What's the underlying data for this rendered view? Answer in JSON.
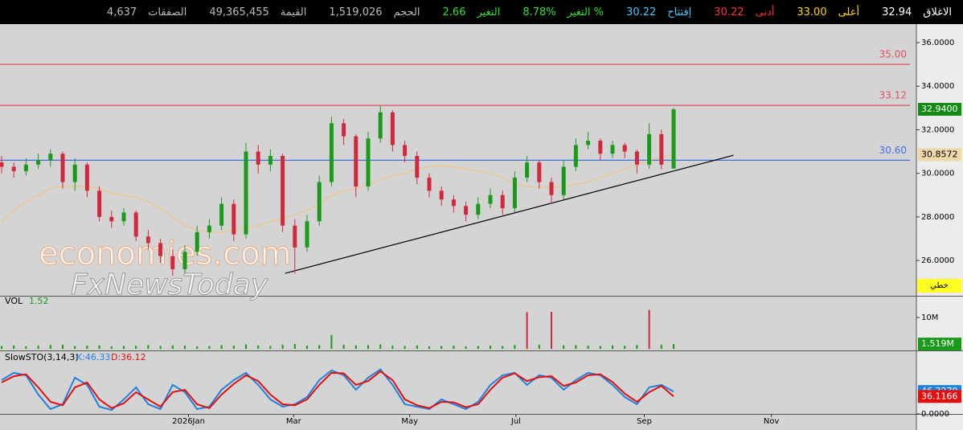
{
  "header": {
    "items": [
      {
        "label": "الاغلاق",
        "value": "32.94",
        "color": "#ffffff"
      },
      {
        "label": "أعلى",
        "value": "33.00",
        "color": "#ffd700"
      },
      {
        "label": "أدنى",
        "value": "30.22",
        "color": "#ff3030"
      },
      {
        "label": "إفتتاح",
        "value": "30.22",
        "color": "#40c8ff"
      },
      {
        "label": "التغير %",
        "value": "8.78%",
        "color": "#30e030"
      },
      {
        "label": "التغير",
        "value": "2.66",
        "color": "#30e030"
      },
      {
        "label": "الحجم",
        "value": "1,519,026",
        "color": "#bbbbbb"
      },
      {
        "label": "القيمة",
        "value": "49,365,455",
        "color": "#bbbbbb"
      },
      {
        "label": "الصفقات",
        "value": "4,637",
        "color": "#bbbbbb"
      }
    ],
    "scale_button": "خطي"
  },
  "chart_data": [
    {
      "type": "candlestick",
      "watermark": [
        "economies.com",
        "FxNewsToday"
      ],
      "xlim": [
        0,
        75
      ],
      "ylim": [
        24.38,
        36.85
      ],
      "yticks": [
        {
          "value": 26,
          "label": "26.0000"
        },
        {
          "value": 28,
          "label": "28.0000"
        },
        {
          "value": 30,
          "label": "30.0000"
        },
        {
          "value": 32,
          "label": "32.0000"
        },
        {
          "value": 34,
          "label": "34.0000"
        },
        {
          "value": 36,
          "label": "36.0000"
        }
      ],
      "up_color": "#1a9a1a",
      "down_color": "#d0283c",
      "open": [
        30.5,
        30.3,
        30.1,
        30.4,
        30.6,
        30.9,
        29.6,
        30.4,
        29.2,
        28.0,
        27.8,
        28.2,
        27.1,
        26.8,
        26.2,
        25.6,
        26.4,
        27.3,
        27.6,
        28.6,
        27.2,
        31.0,
        30.4,
        30.8,
        27.6,
        26.6,
        27.8,
        29.6,
        32.3,
        31.7,
        29.4,
        31.6,
        32.8,
        31.3,
        30.8,
        29.8,
        29.2,
        28.8,
        28.5,
        28.1,
        28.6,
        29.0,
        28.4,
        29.8,
        30.5,
        29.6,
        29.0,
        30.3,
        31.3,
        31.5,
        30.9,
        31.3,
        31.0,
        30.4,
        31.8,
        30.22
      ],
      "high": [
        30.8,
        30.5,
        30.7,
        30.9,
        31.1,
        31.0,
        30.7,
        30.5,
        29.4,
        28.3,
        28.4,
        28.3,
        27.4,
        27.0,
        26.5,
        26.7,
        27.6,
        27.9,
        28.9,
        28.8,
        31.4,
        31.3,
        31.1,
        30.9,
        27.9,
        28.1,
        29.9,
        32.6,
        32.5,
        31.8,
        31.9,
        33.1,
        32.9,
        31.5,
        31.0,
        30.0,
        29.4,
        29.0,
        28.7,
        28.9,
        29.3,
        29.2,
        30.1,
        30.8,
        30.6,
        29.8,
        30.6,
        31.6,
        31.9,
        31.6,
        31.5,
        31.4,
        31.1,
        32.3,
        32.0,
        33.0
      ],
      "low": [
        30.0,
        29.8,
        29.9,
        30.2,
        30.3,
        29.3,
        29.2,
        28.9,
        27.8,
        27.5,
        27.6,
        26.9,
        26.5,
        25.9,
        25.3,
        25.4,
        26.2,
        27.0,
        27.4,
        26.9,
        27.0,
        30.0,
        30.1,
        27.3,
        25.4,
        26.4,
        27.6,
        29.4,
        31.3,
        28.9,
        29.2,
        31.4,
        31.0,
        30.5,
        29.5,
        28.9,
        28.5,
        28.2,
        27.8,
        27.9,
        28.4,
        28.1,
        28.2,
        29.6,
        29.3,
        28.6,
        28.8,
        30.1,
        31.1,
        30.6,
        30.7,
        30.7,
        30.0,
        30.2,
        30.2,
        30.22
      ],
      "close": [
        30.3,
        30.1,
        30.4,
        30.6,
        30.9,
        29.6,
        30.4,
        29.2,
        28.0,
        27.8,
        28.2,
        27.1,
        26.8,
        26.2,
        25.6,
        26.4,
        27.3,
        27.6,
        28.6,
        27.2,
        31.0,
        30.4,
        30.8,
        27.6,
        26.6,
        27.8,
        29.6,
        32.3,
        31.7,
        29.4,
        31.6,
        32.8,
        31.3,
        30.8,
        29.8,
        29.2,
        28.8,
        28.5,
        28.1,
        28.6,
        29.0,
        28.4,
        29.8,
        30.5,
        29.6,
        29.0,
        30.3,
        31.3,
        31.5,
        30.9,
        31.3,
        31.0,
        30.4,
        31.8,
        30.4,
        32.94
      ],
      "ma": {
        "color": "#e8c890",
        "values": [
          27.8,
          28.3,
          28.7,
          29.0,
          29.3,
          29.4,
          29.4,
          29.4,
          29.3,
          29.1,
          29.0,
          28.9,
          28.7,
          28.4,
          28.0,
          27.6,
          27.4,
          27.3,
          27.3,
          27.4,
          27.5,
          27.6,
          27.8,
          27.9,
          28.1,
          28.3,
          28.6,
          29.0,
          29.2,
          29.3,
          29.5,
          29.7,
          29.9,
          30.0,
          30.2,
          30.3,
          30.35,
          30.3,
          30.2,
          30.1,
          30.0,
          29.8,
          29.5,
          29.4,
          29.35,
          29.35,
          29.4,
          29.5,
          29.6,
          29.8,
          30.0,
          30.2,
          30.4,
          30.6,
          30.75,
          30.86
        ]
      },
      "levels": [
        {
          "value": 35,
          "label": "35.00",
          "color": "#e05060"
        },
        {
          "value": 33.12,
          "label": "33.12",
          "color": "#e05060"
        },
        {
          "value": 30.6,
          "label": "30.60",
          "color": "#4070e0"
        }
      ],
      "trendline": {
        "x": [
          23.2,
          59.9
        ],
        "y": [
          25.41,
          30.83
        ],
        "color": "#000000"
      },
      "last_tag": {
        "value": 32.94,
        "label": "32.9400",
        "color": "#138a13"
      },
      "ma_tag": {
        "value": 30.8572,
        "label": "30.8572",
        "color": "#f0d8a8"
      }
    },
    {
      "type": "bar",
      "title": "VOL",
      "value_text": "1.52",
      "ylim": [
        0,
        16400000
      ],
      "yticks": [
        {
          "value": 10000000,
          "label": "10M"
        }
      ],
      "color": "#1a9a1a",
      "spike_color": "#d0283c",
      "values": [
        900000,
        1100000,
        800000,
        1000000,
        1200000,
        1300000,
        900000,
        1000000,
        1100000,
        800000,
        900000,
        1000000,
        1200000,
        900000,
        1100000,
        1000000,
        800000,
        900000,
        1200000,
        1000000,
        1400000,
        1100000,
        900000,
        1300000,
        1500000,
        1000000,
        1200000,
        4400000,
        1300000,
        1100000,
        1200000,
        1400000,
        1000000,
        900000,
        1100000,
        800000,
        900000,
        1000000,
        800000,
        900000,
        1000000,
        900000,
        1200000,
        11700000,
        1300000,
        11800000,
        1100000,
        1200000,
        1000000,
        900000,
        1100000,
        1000000,
        1200000,
        12400000,
        1300000,
        1519026
      ],
      "last_tag": {
        "value": 1519026,
        "label": "1.519M",
        "color": "#1a9a1a"
      }
    },
    {
      "type": "line",
      "title": "SlowSTO(3,14,3)",
      "k_text": "K:46.33",
      "d_text": "D:36.12",
      "xlim": [
        0,
        75
      ],
      "ylim": [
        0,
        128
      ],
      "yticks": [
        {
          "value": 0,
          "label": "0.0000"
        }
      ],
      "xticks": [
        {
          "value": 15.3,
          "label": "2026Jan"
        },
        {
          "value": 23.9,
          "label": "Mar"
        },
        {
          "value": 33.4,
          "label": "May"
        },
        {
          "value": 42.1,
          "label": "Jul"
        },
        {
          "value": 52.6,
          "label": "Sep"
        },
        {
          "value": 63,
          "label": "Nov"
        }
      ],
      "series": [
        {
          "name": "K",
          "color": "#2080e0",
          "values": [
            70,
            85,
            80,
            40,
            10,
            20,
            75,
            60,
            15,
            8,
            30,
            55,
            20,
            10,
            60,
            45,
            10,
            15,
            50,
            70,
            85,
            60,
            30,
            15,
            20,
            35,
            70,
            90,
            80,
            50,
            75,
            92,
            60,
            20,
            15,
            10,
            30,
            20,
            10,
            25,
            60,
            80,
            85,
            60,
            80,
            75,
            50,
            70,
            85,
            80,
            60,
            35,
            20,
            55,
            60,
            46.33
          ],
          "tag": {
            "value": 46.3279,
            "label": "46.3279"
          }
        },
        {
          "name": "D",
          "color": "#e01010",
          "values": [
            65,
            78,
            82,
            55,
            25,
            18,
            55,
            65,
            30,
            12,
            22,
            45,
            30,
            15,
            45,
            50,
            20,
            12,
            40,
            62,
            80,
            68,
            40,
            20,
            18,
            30,
            60,
            85,
            84,
            60,
            68,
            88,
            70,
            30,
            18,
            12,
            25,
            24,
            14,
            20,
            50,
            75,
            84,
            68,
            76,
            78,
            58,
            65,
            80,
            82,
            66,
            42,
            25,
            45,
            58,
            36.12
          ],
          "tag": {
            "value": 36.1166,
            "label": "36.1166"
          }
        }
      ]
    }
  ]
}
